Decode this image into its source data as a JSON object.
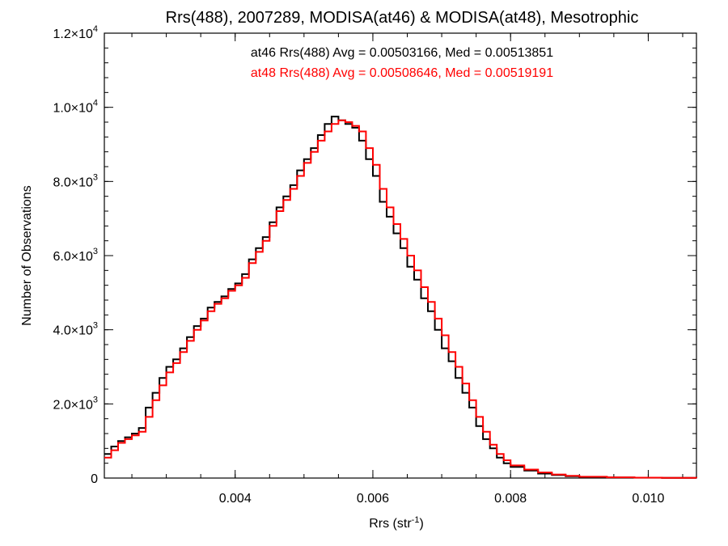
{
  "chart_data": {
    "type": "line",
    "title": "Rrs(488), 2007289, MODISA(at46) & MODISA(at48), Mesotrophic",
    "xlabel": "Rrs (str",
    "xlabel_sup": "-1",
    "xlabel_end": ")",
    "ylabel": "Number of Observations",
    "xlim": [
      0.0021,
      0.0107
    ],
    "ylim": [
      0,
      12000
    ],
    "grid": false,
    "x_ticks": [
      {
        "value": 0.004,
        "label": "0.004"
      },
      {
        "value": 0.006,
        "label": "0.006"
      },
      {
        "value": 0.008,
        "label": "0.008"
      },
      {
        "value": 0.01,
        "label": "0.010"
      }
    ],
    "y_ticks": [
      {
        "value": 0,
        "mant": "0",
        "exp": ""
      },
      {
        "value": 2000,
        "mant": "2.0×10",
        "exp": "3"
      },
      {
        "value": 4000,
        "mant": "4.0×10",
        "exp": "3"
      },
      {
        "value": 6000,
        "mant": "6.0×10",
        "exp": "3"
      },
      {
        "value": 8000,
        "mant": "8.0×10",
        "exp": "3"
      },
      {
        "value": 10000,
        "mant": "1.0×10",
        "exp": "4"
      },
      {
        "value": 12000,
        "mant": "1.2×10",
        "exp": "4"
      }
    ],
    "annotations": [
      {
        "text": "at46 Rrs(488) Avg = 0.00503166, Med = 0.00513851",
        "color": "#000000"
      },
      {
        "text": "at48 Rrs(488) Avg = 0.00508646, Med = 0.00519191",
        "color": "#ff0000"
      }
    ],
    "series": [
      {
        "name": "at46",
        "color": "#000000",
        "x": [
          0.0021,
          0.0022,
          0.0023,
          0.0024,
          0.0025,
          0.0026,
          0.0027,
          0.0028,
          0.0029,
          0.003,
          0.0031,
          0.0032,
          0.0033,
          0.0034,
          0.0035,
          0.0036,
          0.0037,
          0.0038,
          0.0039,
          0.004,
          0.0041,
          0.0042,
          0.0043,
          0.0044,
          0.0045,
          0.0046,
          0.0047,
          0.0048,
          0.0049,
          0.005,
          0.0051,
          0.0052,
          0.0053,
          0.0054,
          0.0055,
          0.0056,
          0.0057,
          0.0058,
          0.0059,
          0.006,
          0.0061,
          0.0062,
          0.0063,
          0.0064,
          0.0065,
          0.0066,
          0.0067,
          0.0068,
          0.0069,
          0.007,
          0.0071,
          0.0072,
          0.0073,
          0.0074,
          0.0075,
          0.0076,
          0.0077,
          0.0078,
          0.0079,
          0.008,
          0.0082,
          0.0084,
          0.0086,
          0.0088,
          0.009,
          0.0094,
          0.0098,
          0.0102,
          0.0107
        ],
        "y": [
          650,
          850,
          1000,
          1100,
          1200,
          1350,
          1900,
          2300,
          2700,
          3000,
          3200,
          3500,
          3800,
          4100,
          4300,
          4600,
          4750,
          4900,
          5100,
          5250,
          5500,
          5900,
          6200,
          6500,
          6900,
          7300,
          7600,
          7900,
          8300,
          8600,
          8900,
          9250,
          9550,
          9750,
          9650,
          9550,
          9450,
          9100,
          8600,
          8150,
          7450,
          7050,
          6600,
          6200,
          5700,
          5350,
          4850,
          4500,
          4000,
          3500,
          3150,
          2700,
          2300,
          1900,
          1400,
          1050,
          800,
          550,
          400,
          300,
          200,
          120,
          80,
          50,
          30,
          15,
          10,
          5,
          0
        ]
      },
      {
        "name": "at48",
        "color": "#ff0000",
        "x": [
          0.0021,
          0.0022,
          0.0023,
          0.0024,
          0.0025,
          0.0026,
          0.0027,
          0.0028,
          0.0029,
          0.003,
          0.0031,
          0.0032,
          0.0033,
          0.0034,
          0.0035,
          0.0036,
          0.0037,
          0.0038,
          0.0039,
          0.004,
          0.0041,
          0.0042,
          0.0043,
          0.0044,
          0.0045,
          0.0046,
          0.0047,
          0.0048,
          0.0049,
          0.005,
          0.0051,
          0.0052,
          0.0053,
          0.0054,
          0.0055,
          0.0056,
          0.0057,
          0.0058,
          0.0059,
          0.006,
          0.0061,
          0.0062,
          0.0063,
          0.0064,
          0.0065,
          0.0066,
          0.0067,
          0.0068,
          0.0069,
          0.007,
          0.0071,
          0.0072,
          0.0073,
          0.0074,
          0.0075,
          0.0076,
          0.0077,
          0.0078,
          0.0079,
          0.008,
          0.0082,
          0.0084,
          0.0086,
          0.0088,
          0.009,
          0.0094,
          0.0098,
          0.0102,
          0.0107
        ],
        "y": [
          550,
          750,
          950,
          1050,
          1150,
          1250,
          1650,
          2100,
          2500,
          2850,
          3100,
          3400,
          3700,
          4000,
          4250,
          4500,
          4700,
          4850,
          5050,
          5200,
          5400,
          5800,
          6100,
          6400,
          6800,
          7200,
          7500,
          7800,
          8150,
          8500,
          8800,
          9100,
          9350,
          9550,
          9650,
          9600,
          9500,
          9350,
          8900,
          8450,
          7800,
          7300,
          6850,
          6450,
          6000,
          5600,
          5150,
          4750,
          4300,
          3850,
          3400,
          3000,
          2550,
          2100,
          1650,
          1250,
          900,
          650,
          480,
          340,
          230,
          150,
          95,
          60,
          35,
          20,
          12,
          6,
          0
        ]
      }
    ]
  }
}
